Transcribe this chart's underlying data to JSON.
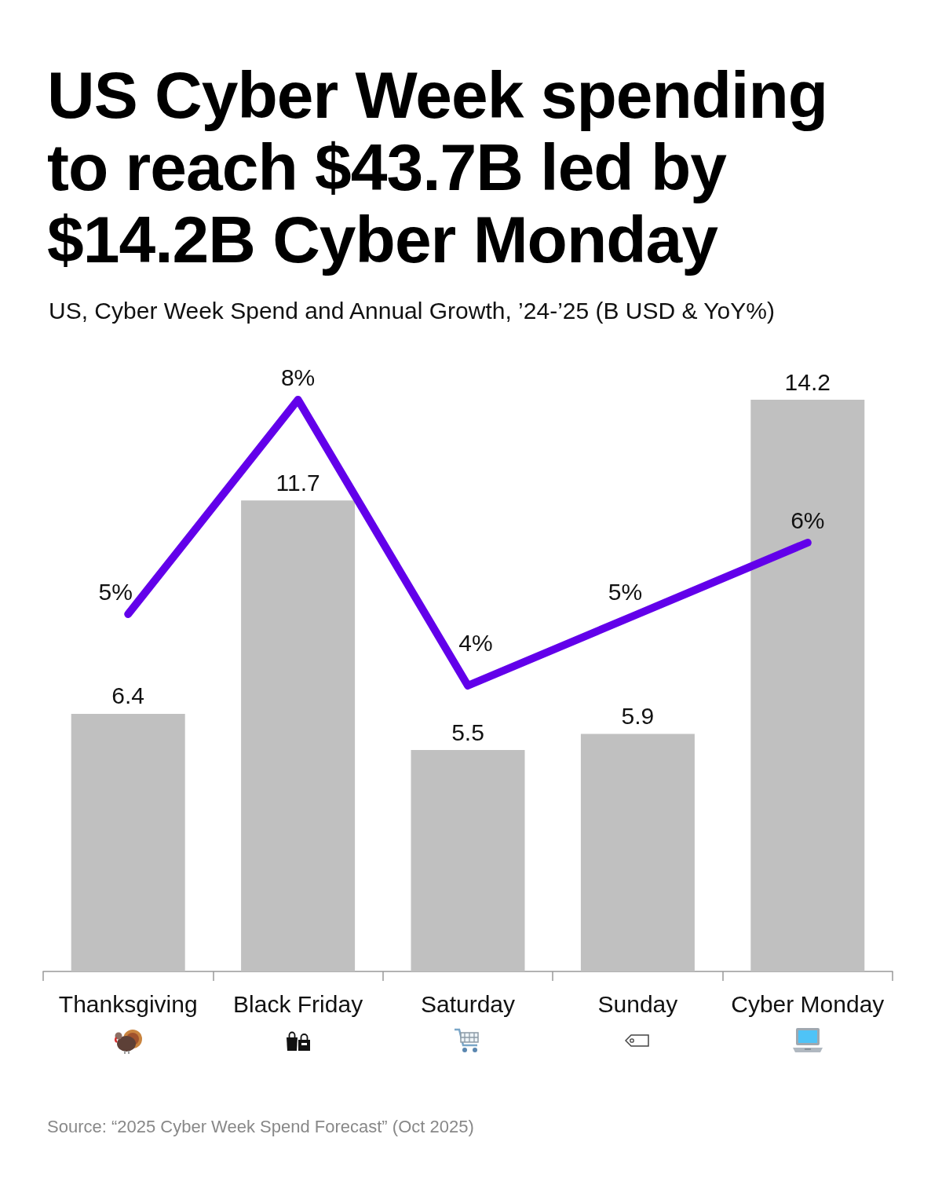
{
  "chart_data": {
    "type": "bar",
    "title": "US Cyber Week spending to reach $43.7B led by $14.2B Cyber Monday",
    "subtitle": "US, Cyber Week Spend and Annual Growth, ’24-’25 (B USD & YoY%)",
    "categories": [
      "Thanksgiving",
      "Black Friday",
      "Saturday",
      "Sunday",
      "Cyber Monday"
    ],
    "series": [
      {
        "color": "#c0c0c0",
        "values": [
          6.4,
          11.7,
          5.5,
          5.9,
          14.2
        ]
      },
      {
        "type": "line",
        "axis": "y2",
        "color": "#6200ea",
        "values": [
          5,
          8,
          4,
          5,
          6
        ],
        "value_labels": [
          "5%",
          "8%",
          "4%",
          "5%",
          "6%"
        ],
        "marker": "none",
        "line_style": "solid"
      }
    ],
    "data_labels": true,
    "tick_labels": "x",
    "grid": false,
    "annotations": [
      "Source: “2025 Cyber Week Spend Forecast” (Oct 2025)"
    ]
  }
}
